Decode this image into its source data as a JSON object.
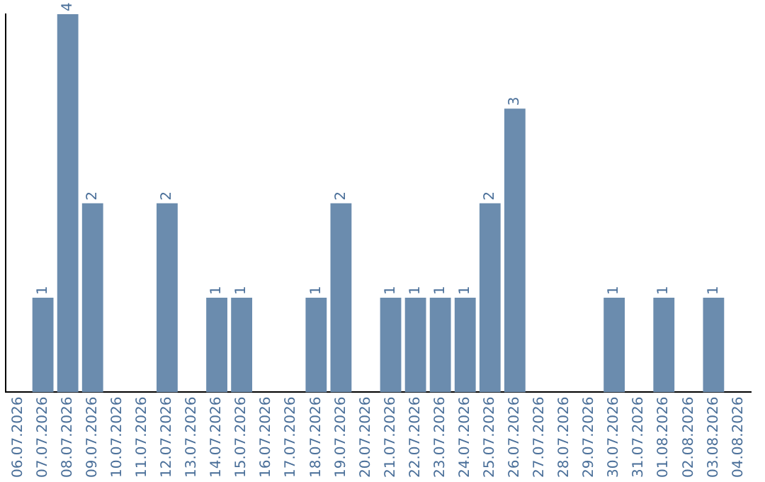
{
  "chart_data": {
    "type": "bar",
    "categories": [
      "06.07.2026",
      "07.07.2026",
      "08.07.2026",
      "09.07.2026",
      "10.07.2026",
      "11.07.2026",
      "12.07.2026",
      "13.07.2026",
      "14.07.2026",
      "15.07.2026",
      "16.07.2026",
      "17.07.2026",
      "18.07.2026",
      "19.07.2026",
      "20.07.2026",
      "21.07.2026",
      "22.07.2026",
      "23.07.2026",
      "24.07.2026",
      "25.07.2026",
      "26.07.2026",
      "27.07.2026",
      "28.07.2026",
      "29.07.2026",
      "30.07.2026",
      "31.07.2026",
      "01.08.2026",
      "02.08.2026",
      "03.08.2026",
      "04.08.2026"
    ],
    "values": [
      0,
      1,
      4,
      2,
      0,
      0,
      2,
      0,
      1,
      1,
      0,
      0,
      1,
      2,
      0,
      1,
      1,
      1,
      1,
      2,
      3,
      0,
      0,
      0,
      1,
      0,
      1,
      0,
      1,
      0
    ],
    "value_labels": [
      null,
      "1",
      "4",
      "2",
      null,
      null,
      "2",
      null,
      "1",
      "1",
      null,
      null,
      "1",
      "2",
      null,
      "1",
      "1",
      "1",
      "1",
      "2",
      "3",
      null,
      null,
      null,
      "1",
      null,
      "1",
      null,
      "1",
      null
    ],
    "color": "#6b8cae",
    "grid": false,
    "legend": false,
    "tick_labels": "x"
  }
}
